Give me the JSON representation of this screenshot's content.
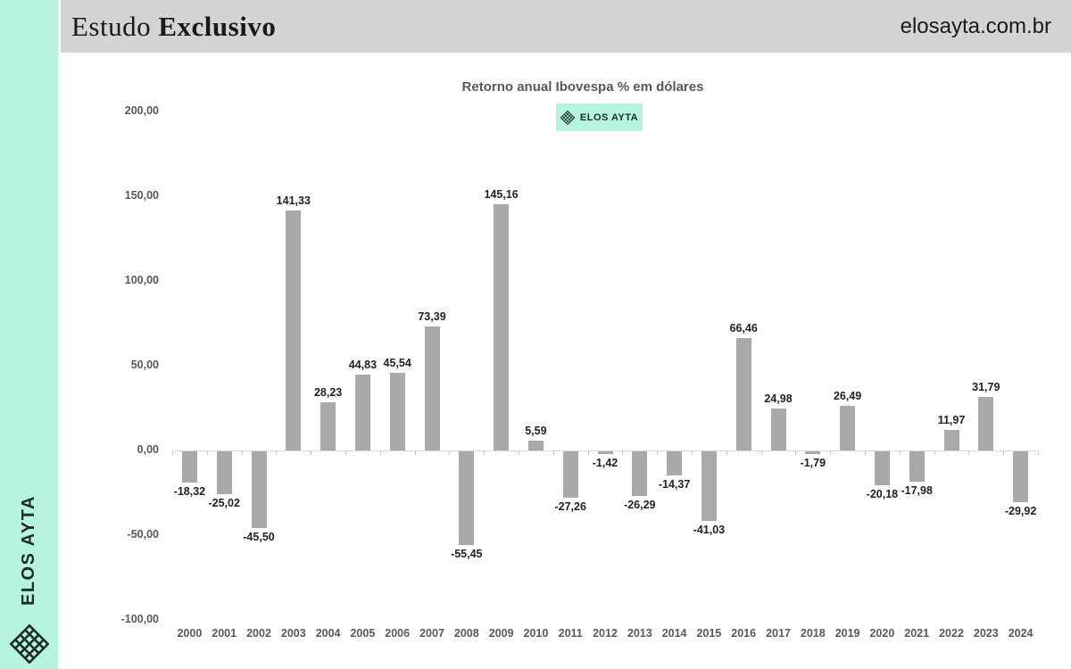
{
  "header": {
    "title_regular": "Estudo",
    "title_bold": "Exclusivo",
    "site": "elosayta.com.br"
  },
  "sidebar": {
    "brand": "ELOS AYTA"
  },
  "chart": {
    "title": "Retorno anual Ibovespa % em dólares",
    "legend_label": "ELOS AYTA"
  },
  "chart_data": {
    "type": "bar",
    "title": "Retorno anual Ibovespa % em dólares",
    "legend": {
      "label": "ELOS AYTA",
      "position": "top"
    },
    "categories": [
      "2000",
      "2001",
      "2002",
      "2003",
      "2004",
      "2005",
      "2006",
      "2007",
      "2008",
      "2009",
      "2010",
      "2011",
      "2012",
      "2013",
      "2014",
      "2015",
      "2016",
      "2017",
      "2018",
      "2019",
      "2020",
      "2021",
      "2022",
      "2023",
      "2024"
    ],
    "values": [
      -18.32,
      -25.02,
      -45.5,
      141.33,
      28.23,
      44.83,
      45.54,
      73.39,
      -55.45,
      145.16,
      5.59,
      -27.26,
      -1.42,
      -26.29,
      -14.37,
      -41.03,
      66.46,
      24.98,
      -1.79,
      26.49,
      -20.18,
      -17.98,
      11.97,
      31.79,
      -29.92
    ],
    "value_labels": [
      "-18,32",
      "-25,02",
      "-45,50",
      "141,33",
      "28,23",
      "44,83",
      "45,54",
      "73,39",
      "-55,45",
      "145,16",
      "5,59",
      "-27,26",
      "-1,42",
      "-26,29",
      "-14,37",
      "-41,03",
      "66,46",
      "24,98",
      "-1,79",
      "26,49",
      "-20,18",
      "-17,98",
      "11,97",
      "31,79",
      "-29,92"
    ],
    "xlabel": "",
    "ylabel": "",
    "ylim": [
      -100,
      200
    ],
    "yticks": [
      200,
      150,
      100,
      50,
      0,
      -50,
      -100
    ],
    "ytick_labels": [
      "200,00",
      "150,00",
      "100,00",
      "50,00",
      "0,00",
      "-50,00",
      "-100,00"
    ],
    "grid": false
  },
  "colors": {
    "accent_mint": "#b7f3e1",
    "header_bg": "#d4d4d4",
    "bar": "#a9a9a9",
    "axis_text": "#595959",
    "value_text": "#222222",
    "brand_dark": "#1d2d2a"
  }
}
